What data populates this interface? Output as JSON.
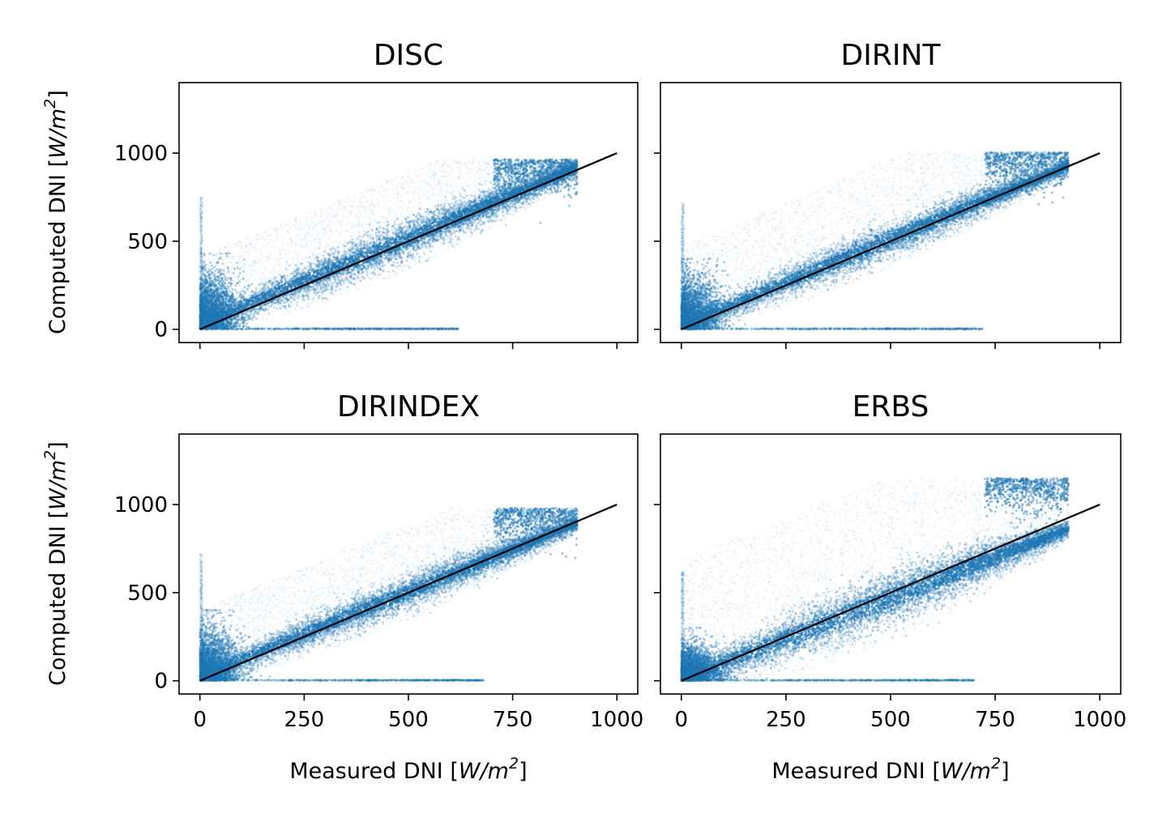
{
  "figure": {
    "colors": {
      "scatter": "#1f77b4",
      "reference_line": "#000000",
      "background": "#ffffff"
    }
  },
  "chart_data": [
    {
      "type": "scatter",
      "title": "DISC",
      "xlabel": "",
      "ylabel_prefix": "Computed DNI [",
      "ylabel_math": "W/m",
      "ylabel_sup": "2",
      "ylabel_suffix": "]",
      "xlim": [
        -50,
        1050
      ],
      "ylim": [
        -75,
        1400
      ],
      "xticks": [
        0,
        250,
        500,
        750,
        1000
      ],
      "yticks": [
        0,
        500,
        1000
      ],
      "xtick_labels_shown": false,
      "ytick_labels_shown": true,
      "reference_line": {
        "x": [
          0,
          1000
        ],
        "y": [
          0,
          1000
        ]
      },
      "clusters": [
        {
          "x": [
            0,
            40
          ],
          "y": [
            0,
            330
          ],
          "density": "high"
        },
        {
          "x": [
            0,
            900
          ],
          "y": [
            0,
            960
          ],
          "trend": "dense band slightly above diagonal at low x, below near 600-850, capped near 960"
        },
        {
          "x": [
            0,
            620
          ],
          "y": [
            0,
            5
          ],
          "trend": "horizontal streak along y=0"
        }
      ],
      "grid": false
    },
    {
      "type": "scatter",
      "title": "DIRINT",
      "xlabel": "",
      "ylabel": "",
      "xlim": [
        -50,
        1050
      ],
      "ylim": [
        -75,
        1400
      ],
      "xticks": [
        0,
        250,
        500,
        750,
        1000
      ],
      "yticks": [
        0,
        500,
        1000
      ],
      "xtick_labels_shown": false,
      "ytick_labels_shown": false,
      "reference_line": {
        "x": [
          0,
          1000
        ],
        "y": [
          0,
          1000
        ]
      },
      "clusters": [
        {
          "x": [
            0,
            40
          ],
          "y": [
            0,
            300
          ],
          "density": "high"
        },
        {
          "x": [
            0,
            920
          ],
          "y": [
            0,
            1000
          ],
          "trend": "dense band close to diagonal, upper tail near 1000"
        },
        {
          "x": [
            0,
            720
          ],
          "y": [
            0,
            5
          ],
          "trend": "horizontal streak along y=0"
        }
      ],
      "grid": false
    },
    {
      "type": "scatter",
      "title": "DIRINDEX",
      "xlabel_prefix": "Measured DNI [",
      "xlabel_math": "W/m",
      "xlabel_sup": "2",
      "xlabel_suffix": "]",
      "ylabel_prefix": "Computed DNI [",
      "ylabel_math": "W/m",
      "ylabel_sup": "2",
      "ylabel_suffix": "]",
      "xlim": [
        -50,
        1050
      ],
      "ylim": [
        -75,
        1400
      ],
      "xticks": [
        0,
        250,
        500,
        750,
        1000
      ],
      "yticks": [
        0,
        500,
        1000
      ],
      "xtick_labels_shown": true,
      "ytick_labels_shown": true,
      "reference_line": {
        "x": [
          0,
          1000
        ],
        "y": [
          0,
          1000
        ]
      },
      "clusters": [
        {
          "x": [
            0,
            40
          ],
          "y": [
            0,
            300
          ],
          "density": "high"
        },
        {
          "x": [
            0,
            900
          ],
          "y": [
            0,
            980
          ],
          "trend": "dense band along diagonal, capped near 980"
        },
        {
          "x": [
            0,
            680
          ],
          "y": [
            0,
            5
          ],
          "trend": "horizontal streak along y=0"
        }
      ],
      "grid": false
    },
    {
      "type": "scatter",
      "title": "ERBS",
      "xlabel_prefix": "Measured DNI [",
      "xlabel_math": "W/m",
      "xlabel_sup": "2",
      "xlabel_suffix": "]",
      "ylabel": "",
      "xlim": [
        -50,
        1050
      ],
      "ylim": [
        -75,
        1400
      ],
      "xticks": [
        0,
        250,
        500,
        750,
        1000
      ],
      "yticks": [
        0,
        500,
        1000
      ],
      "xtick_labels_shown": true,
      "ytick_labels_shown": false,
      "reference_line": {
        "x": [
          0,
          1000
        ],
        "y": [
          0,
          1000
        ]
      },
      "clusters": [
        {
          "x": [
            0,
            40
          ],
          "y": [
            0,
            200
          ],
          "density": "high"
        },
        {
          "x": [
            0,
            920
          ],
          "y": [
            0,
            1150
          ],
          "trend": "wide band below diagonal at mid x, widely scattered above"
        },
        {
          "x": [
            0,
            700
          ],
          "y": [
            0,
            5
          ],
          "trend": "horizontal streak along y=0"
        }
      ],
      "grid": false
    }
  ]
}
